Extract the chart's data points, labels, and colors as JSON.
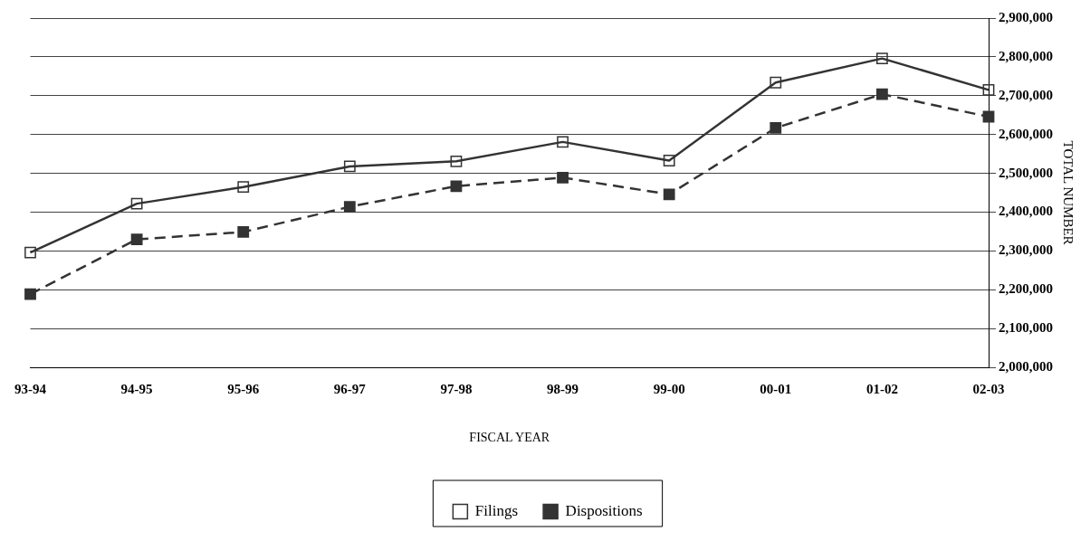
{
  "chart_data": {
    "type": "line",
    "xlabel": "FISCAL YEAR",
    "ylabel": "TOTAL NUMBER",
    "categories": [
      "93-94",
      "94-95",
      "95-96",
      "96-97",
      "97-98",
      "98-99",
      "99-00",
      "00-01",
      "01-02",
      "02-03"
    ],
    "series": [
      {
        "name": "Filings",
        "color": "#333333",
        "line_style": "solid",
        "marker": "square",
        "values": [
          2296000,
          2422000,
          2465000,
          2518000,
          2531000,
          2581000,
          2533000,
          2734000,
          2796000,
          2715000
        ]
      },
      {
        "name": "Dispositions",
        "color": "#333333",
        "line_style": "dashed",
        "marker": "square",
        "values": [
          2189000,
          2330000,
          2349000,
          2414000,
          2467000,
          2489000,
          2446000,
          2617000,
          2704000,
          2646000
        ]
      }
    ],
    "ylim": [
      2000000,
      2900000
    ],
    "yticks": [
      {
        "value": 2000000,
        "label": "2,000,000"
      },
      {
        "value": 2100000,
        "label": "2,100,000"
      },
      {
        "value": 2200000,
        "label": "2,200,000"
      },
      {
        "value": 2300000,
        "label": "2,300,000"
      },
      {
        "value": 2400000,
        "label": "2,400,000"
      },
      {
        "value": 2500000,
        "label": "2,500,000"
      },
      {
        "value": 2600000,
        "label": "2,600,000"
      },
      {
        "value": 2700000,
        "label": "2,700,000"
      },
      {
        "value": 2800000,
        "label": "2,800,000"
      },
      {
        "value": 2900000,
        "label": "2,900,000"
      }
    ],
    "grid": "y",
    "legend": "bottom"
  }
}
